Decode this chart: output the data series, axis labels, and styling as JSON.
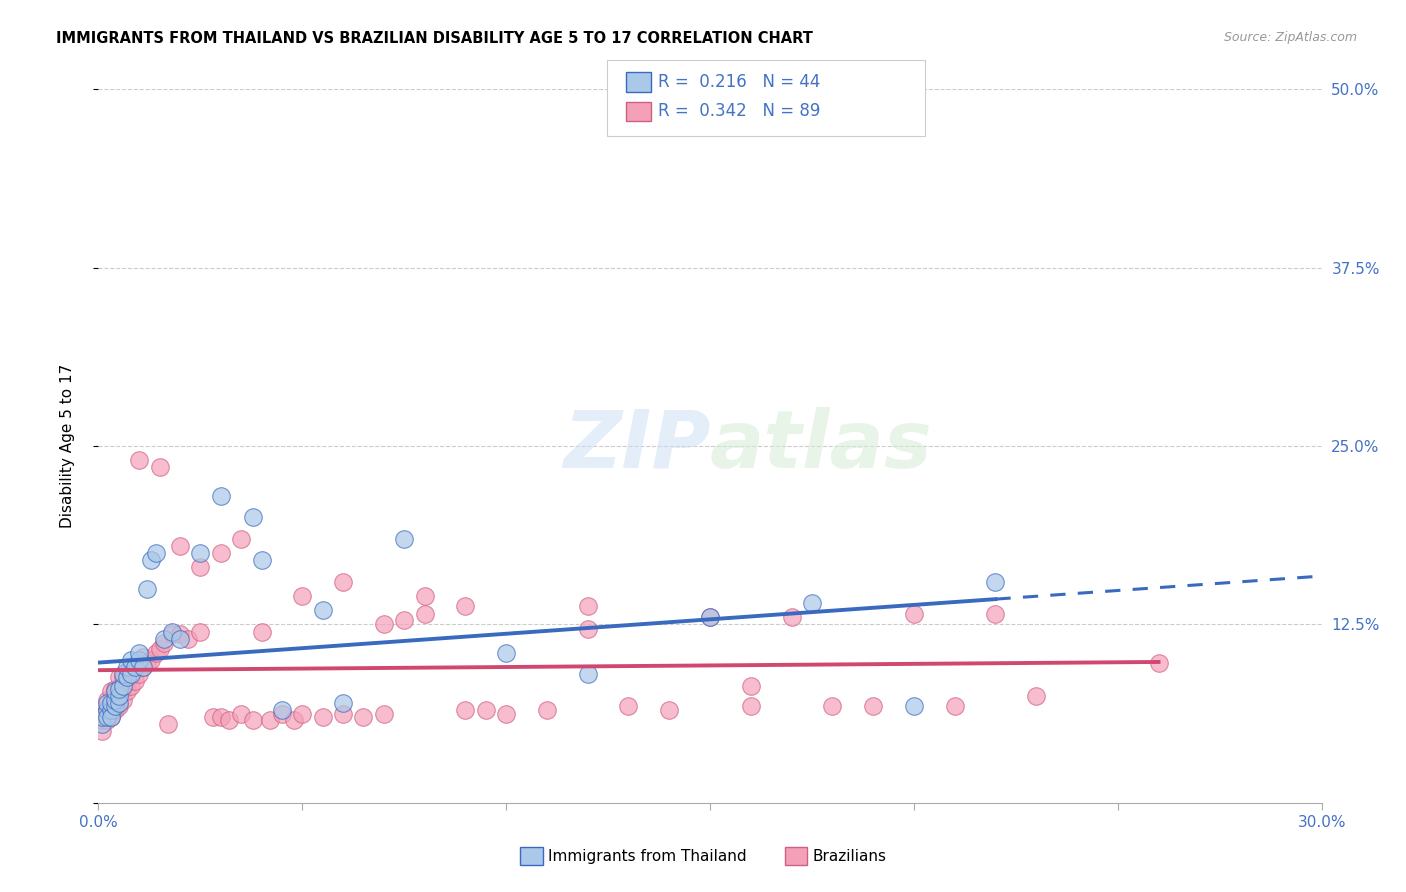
{
  "title": "IMMIGRANTS FROM THAILAND VS BRAZILIAN DISABILITY AGE 5 TO 17 CORRELATION CHART",
  "source": "Source: ZipAtlas.com",
  "ylabel": "Disability Age 5 to 17",
  "xlim": [
    0.0,
    0.3
  ],
  "ylim": [
    0.0,
    0.5
  ],
  "xtick_positions": [
    0.0,
    0.05,
    0.1,
    0.15,
    0.2,
    0.25,
    0.3
  ],
  "xticklabels": [
    "0.0%",
    "",
    "",
    "",
    "",
    "",
    "30.0%"
  ],
  "ytick_positions": [
    0.0,
    0.125,
    0.25,
    0.375,
    0.5
  ],
  "yticklabels_right": [
    "",
    "12.5%",
    "25.0%",
    "37.5%",
    "50.0%"
  ],
  "legend_label1": "Immigrants from Thailand",
  "legend_label2": "Brazilians",
  "R1": 0.216,
  "N1": 44,
  "R2": 0.342,
  "N2": 89,
  "color_thailand": "#aac8e8",
  "color_brazil": "#f4a0b8",
  "trend_color_thailand": "#3a6abf",
  "trend_color_brazil": "#d04870",
  "thailand_x": [
    0.001,
    0.001,
    0.002,
    0.002,
    0.002,
    0.003,
    0.003,
    0.003,
    0.004,
    0.004,
    0.004,
    0.005,
    0.005,
    0.005,
    0.006,
    0.006,
    0.007,
    0.007,
    0.008,
    0.008,
    0.009,
    0.01,
    0.01,
    0.011,
    0.012,
    0.013,
    0.014,
    0.016,
    0.018,
    0.02,
    0.025,
    0.03,
    0.038,
    0.04,
    0.045,
    0.055,
    0.06,
    0.075,
    0.1,
    0.12,
    0.15,
    0.175,
    0.2,
    0.22
  ],
  "thailand_y": [
    0.055,
    0.06,
    0.065,
    0.06,
    0.07,
    0.065,
    0.07,
    0.06,
    0.068,
    0.072,
    0.078,
    0.07,
    0.075,
    0.08,
    0.082,
    0.09,
    0.088,
    0.095,
    0.09,
    0.1,
    0.095,
    0.1,
    0.105,
    0.095,
    0.15,
    0.17,
    0.175,
    0.115,
    0.12,
    0.115,
    0.175,
    0.215,
    0.2,
    0.17,
    0.065,
    0.135,
    0.07,
    0.185,
    0.105,
    0.09,
    0.13,
    0.14,
    0.068,
    0.155
  ],
  "brazil_x": [
    0.001,
    0.001,
    0.001,
    0.002,
    0.002,
    0.002,
    0.003,
    0.003,
    0.003,
    0.003,
    0.004,
    0.004,
    0.004,
    0.004,
    0.005,
    0.005,
    0.005,
    0.005,
    0.006,
    0.006,
    0.006,
    0.007,
    0.007,
    0.007,
    0.008,
    0.008,
    0.008,
    0.009,
    0.009,
    0.01,
    0.01,
    0.011,
    0.011,
    0.012,
    0.013,
    0.014,
    0.015,
    0.016,
    0.017,
    0.018,
    0.02,
    0.022,
    0.025,
    0.028,
    0.03,
    0.032,
    0.035,
    0.038,
    0.04,
    0.042,
    0.045,
    0.048,
    0.05,
    0.055,
    0.06,
    0.065,
    0.07,
    0.075,
    0.08,
    0.09,
    0.095,
    0.1,
    0.11,
    0.12,
    0.13,
    0.14,
    0.15,
    0.16,
    0.17,
    0.18,
    0.19,
    0.2,
    0.21,
    0.22,
    0.23,
    0.015,
    0.025,
    0.035,
    0.06,
    0.08,
    0.01,
    0.02,
    0.03,
    0.05,
    0.07,
    0.09,
    0.12,
    0.16,
    0.26
  ],
  "brazil_y": [
    0.05,
    0.058,
    0.065,
    0.058,
    0.065,
    0.072,
    0.06,
    0.068,
    0.072,
    0.078,
    0.065,
    0.07,
    0.075,
    0.08,
    0.068,
    0.075,
    0.08,
    0.088,
    0.072,
    0.08,
    0.088,
    0.078,
    0.085,
    0.092,
    0.082,
    0.09,
    0.095,
    0.085,
    0.095,
    0.09,
    0.098,
    0.095,
    0.102,
    0.098,
    0.1,
    0.105,
    0.108,
    0.112,
    0.055,
    0.118,
    0.118,
    0.115,
    0.12,
    0.06,
    0.06,
    0.058,
    0.062,
    0.058,
    0.12,
    0.058,
    0.062,
    0.058,
    0.062,
    0.06,
    0.062,
    0.06,
    0.062,
    0.128,
    0.132,
    0.065,
    0.065,
    0.062,
    0.065,
    0.138,
    0.068,
    0.065,
    0.13,
    0.068,
    0.13,
    0.068,
    0.068,
    0.132,
    0.068,
    0.132,
    0.075,
    0.235,
    0.165,
    0.185,
    0.155,
    0.145,
    0.24,
    0.18,
    0.175,
    0.145,
    0.125,
    0.138,
    0.122,
    0.082,
    0.098
  ]
}
